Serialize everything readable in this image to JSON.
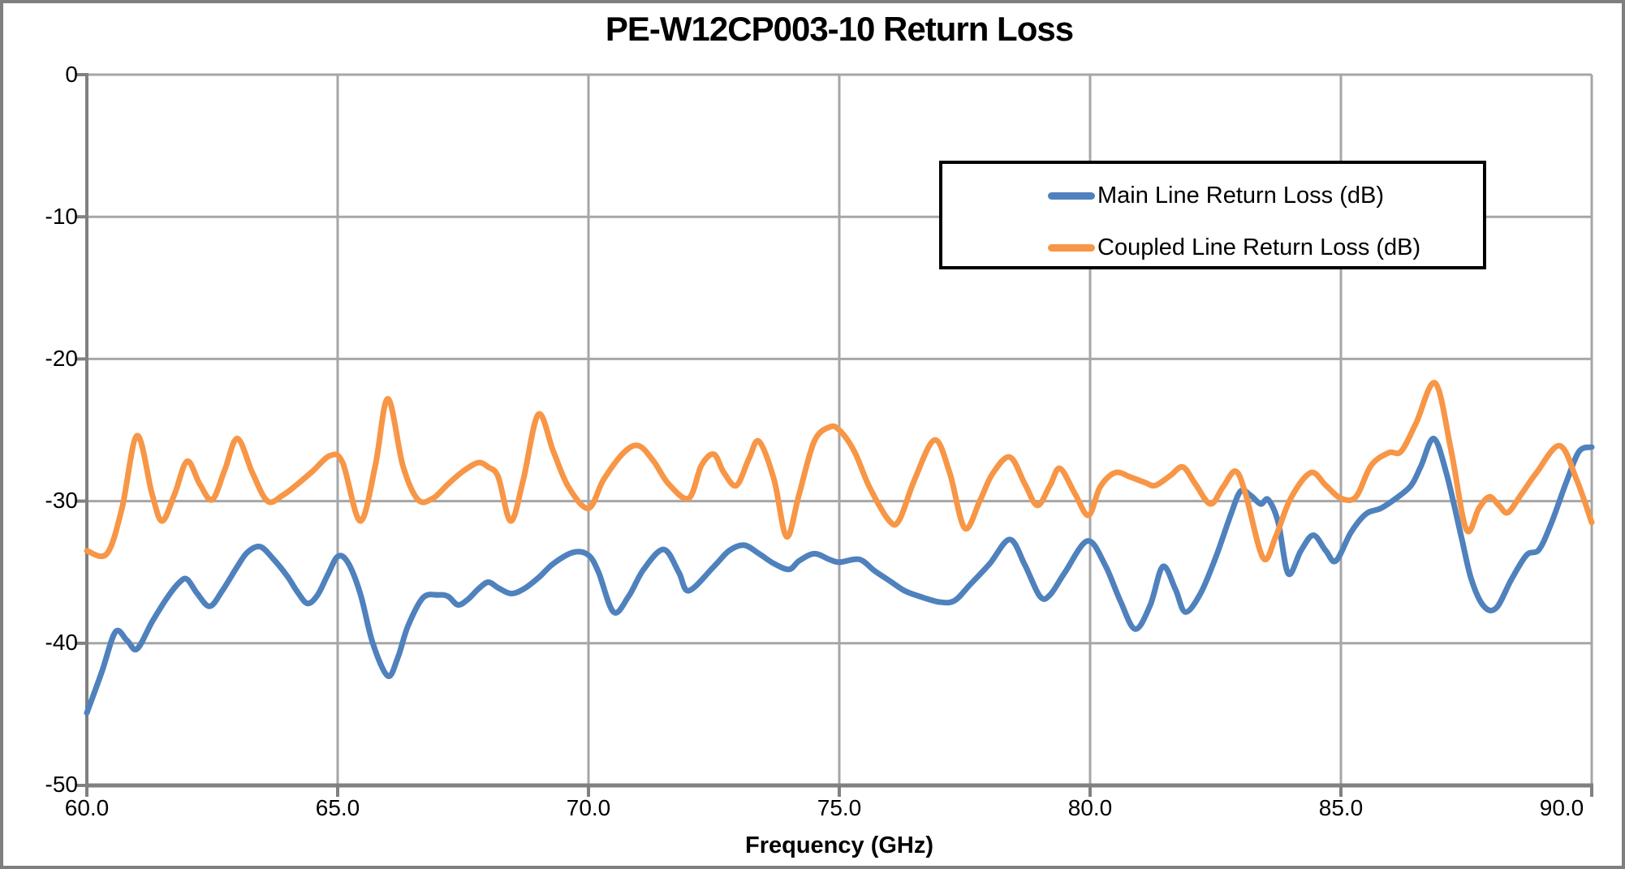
{
  "title": "PE-W12CP003-10 Return Loss",
  "xaxis_title": "Frequency (GHz)",
  "colors": {
    "main_line": "#4F81BD",
    "coupled_line": "#F79646",
    "gridline": "#A6A6A6",
    "axis": "#808080",
    "legend_border": "#000000",
    "page_border": "#7F7F7F"
  },
  "yticks": [
    "0",
    "-10",
    "-20",
    "-30",
    "-40",
    "-50"
  ],
  "xticks": [
    "60.0",
    "65.0",
    "70.0",
    "75.0",
    "80.0",
    "85.0",
    "90.0"
  ],
  "legend": [
    {
      "label": "Main Line Return Loss (dB)"
    },
    {
      "label": "Coupled Line Return Loss (dB)"
    }
  ],
  "chart_data": {
    "type": "line",
    "title": "PE-W12CP003-10 Return Loss",
    "xlabel": "Frequency (GHz)",
    "ylabel": "",
    "xlim": [
      60,
      90
    ],
    "ylim": [
      -50,
      0
    ],
    "x_tick_step": 5,
    "y_tick_step": 10,
    "grid": true,
    "legend_position": "inside-top-right",
    "series": [
      {
        "name": "Main Line Return Loss (dB)",
        "color": "#4F81BD",
        "points": [
          [
            60.0,
            -44.9
          ],
          [
            60.3,
            -42.0
          ],
          [
            60.57,
            -39.2
          ],
          [
            60.8,
            -39.8
          ],
          [
            61.0,
            -40.4
          ],
          [
            61.3,
            -38.5
          ],
          [
            61.6,
            -36.8
          ],
          [
            61.85,
            -35.7
          ],
          [
            62.0,
            -35.5
          ],
          [
            62.2,
            -36.5
          ],
          [
            62.45,
            -37.4
          ],
          [
            62.7,
            -36.3
          ],
          [
            63.0,
            -34.6
          ],
          [
            63.2,
            -33.6
          ],
          [
            63.45,
            -33.2
          ],
          [
            63.7,
            -34.0
          ],
          [
            64.0,
            -35.3
          ],
          [
            64.2,
            -36.4
          ],
          [
            64.4,
            -37.2
          ],
          [
            64.6,
            -36.6
          ],
          [
            64.8,
            -35.2
          ],
          [
            65.0,
            -33.9
          ],
          [
            65.2,
            -34.3
          ],
          [
            65.45,
            -36.5
          ],
          [
            65.7,
            -40.0
          ],
          [
            66.0,
            -42.3
          ],
          [
            66.2,
            -41.0
          ],
          [
            66.4,
            -38.8
          ],
          [
            66.7,
            -36.8
          ],
          [
            67.0,
            -36.6
          ],
          [
            67.2,
            -36.7
          ],
          [
            67.4,
            -37.3
          ],
          [
            67.6,
            -36.9
          ],
          [
            67.8,
            -36.2
          ],
          [
            68.0,
            -35.7
          ],
          [
            68.2,
            -36.1
          ],
          [
            68.45,
            -36.5
          ],
          [
            68.7,
            -36.2
          ],
          [
            69.0,
            -35.4
          ],
          [
            69.3,
            -34.4
          ],
          [
            69.7,
            -33.6
          ],
          [
            70.0,
            -33.8
          ],
          [
            70.2,
            -35.0
          ],
          [
            70.5,
            -37.8
          ],
          [
            70.8,
            -36.7
          ],
          [
            71.1,
            -34.8
          ],
          [
            71.5,
            -33.4
          ],
          [
            71.8,
            -35.0
          ],
          [
            72.0,
            -36.3
          ],
          [
            72.5,
            -34.6
          ],
          [
            72.8,
            -33.5
          ],
          [
            73.1,
            -33.1
          ],
          [
            73.4,
            -33.7
          ],
          [
            73.7,
            -34.4
          ],
          [
            74.0,
            -34.8
          ],
          [
            74.2,
            -34.2
          ],
          [
            74.5,
            -33.7
          ],
          [
            74.8,
            -34.1
          ],
          [
            75.0,
            -34.3
          ],
          [
            75.4,
            -34.1
          ],
          [
            75.7,
            -34.9
          ],
          [
            76.0,
            -35.6
          ],
          [
            76.3,
            -36.3
          ],
          [
            76.6,
            -36.7
          ],
          [
            77.0,
            -37.1
          ],
          [
            77.3,
            -37.0
          ],
          [
            77.6,
            -35.9
          ],
          [
            78.0,
            -34.4
          ],
          [
            78.4,
            -32.7
          ],
          [
            78.7,
            -34.5
          ],
          [
            79.0,
            -36.7
          ],
          [
            79.2,
            -36.6
          ],
          [
            79.5,
            -35.0
          ],
          [
            79.95,
            -32.8
          ],
          [
            80.3,
            -34.5
          ],
          [
            80.6,
            -37.0
          ],
          [
            80.9,
            -39.0
          ],
          [
            81.2,
            -37.3
          ],
          [
            81.45,
            -34.6
          ],
          [
            81.7,
            -36.2
          ],
          [
            81.9,
            -37.8
          ],
          [
            82.2,
            -36.5
          ],
          [
            82.5,
            -34.0
          ],
          [
            82.8,
            -31.0
          ],
          [
            83.0,
            -29.3
          ],
          [
            83.2,
            -29.6
          ],
          [
            83.4,
            -30.2
          ],
          [
            83.55,
            -29.9
          ],
          [
            83.75,
            -31.5
          ],
          [
            83.95,
            -35.1
          ],
          [
            84.2,
            -33.5
          ],
          [
            84.45,
            -32.4
          ],
          [
            84.7,
            -33.5
          ],
          [
            84.9,
            -34.2
          ],
          [
            85.2,
            -32.2
          ],
          [
            85.5,
            -30.9
          ],
          [
            85.8,
            -30.5
          ],
          [
            86.1,
            -29.8
          ],
          [
            86.4,
            -28.9
          ],
          [
            86.6,
            -27.5
          ],
          [
            86.85,
            -25.6
          ],
          [
            87.1,
            -28.0
          ],
          [
            87.4,
            -32.5
          ],
          [
            87.6,
            -35.5
          ],
          [
            87.85,
            -37.4
          ],
          [
            88.1,
            -37.5
          ],
          [
            88.4,
            -35.5
          ],
          [
            88.7,
            -33.8
          ],
          [
            88.95,
            -33.4
          ],
          [
            89.2,
            -31.5
          ],
          [
            89.5,
            -28.6
          ],
          [
            89.75,
            -26.5
          ],
          [
            90.0,
            -26.2
          ]
        ]
      },
      {
        "name": "Coupled Line Return Loss (dB)",
        "color": "#F79646",
        "points": [
          [
            60.0,
            -33.5
          ],
          [
            60.4,
            -33.7
          ],
          [
            60.7,
            -30.5
          ],
          [
            61.0,
            -25.4
          ],
          [
            61.3,
            -29.5
          ],
          [
            61.5,
            -31.4
          ],
          [
            61.75,
            -29.5
          ],
          [
            62.0,
            -27.2
          ],
          [
            62.25,
            -28.8
          ],
          [
            62.5,
            -29.9
          ],
          [
            62.75,
            -27.8
          ],
          [
            63.0,
            -25.6
          ],
          [
            63.3,
            -28.0
          ],
          [
            63.6,
            -30.0
          ],
          [
            63.9,
            -29.6
          ],
          [
            64.2,
            -28.8
          ],
          [
            64.5,
            -27.9
          ],
          [
            64.85,
            -26.8
          ],
          [
            65.1,
            -27.3
          ],
          [
            65.45,
            -31.4
          ],
          [
            65.75,
            -27.5
          ],
          [
            66.0,
            -22.8
          ],
          [
            66.3,
            -27.5
          ],
          [
            66.6,
            -29.9
          ],
          [
            66.9,
            -29.8
          ],
          [
            67.2,
            -28.8
          ],
          [
            67.5,
            -27.9
          ],
          [
            67.8,
            -27.3
          ],
          [
            68.0,
            -27.6
          ],
          [
            68.2,
            -28.3
          ],
          [
            68.45,
            -31.4
          ],
          [
            68.7,
            -28.5
          ],
          [
            69.0,
            -23.9
          ],
          [
            69.3,
            -26.5
          ],
          [
            69.6,
            -29.0
          ],
          [
            70.0,
            -30.5
          ],
          [
            70.3,
            -28.5
          ],
          [
            70.7,
            -26.6
          ],
          [
            71.0,
            -26.1
          ],
          [
            71.3,
            -27.2
          ],
          [
            71.6,
            -28.8
          ],
          [
            72.0,
            -29.8
          ],
          [
            72.25,
            -27.5
          ],
          [
            72.5,
            -26.7
          ],
          [
            72.7,
            -28.0
          ],
          [
            72.95,
            -28.9
          ],
          [
            73.2,
            -27.0
          ],
          [
            73.4,
            -25.8
          ],
          [
            73.7,
            -28.5
          ],
          [
            73.95,
            -32.5
          ],
          [
            74.2,
            -29.5
          ],
          [
            74.5,
            -25.8
          ],
          [
            74.8,
            -24.8
          ],
          [
            75.0,
            -25.0
          ],
          [
            75.3,
            -26.5
          ],
          [
            75.6,
            -29.0
          ],
          [
            76.0,
            -31.4
          ],
          [
            76.2,
            -31.3
          ],
          [
            76.5,
            -28.5
          ],
          [
            76.9,
            -25.7
          ],
          [
            77.2,
            -28.0
          ],
          [
            77.5,
            -31.9
          ],
          [
            77.8,
            -30.0
          ],
          [
            78.05,
            -28.1
          ],
          [
            78.4,
            -26.9
          ],
          [
            78.7,
            -28.8
          ],
          [
            78.95,
            -30.3
          ],
          [
            79.2,
            -28.9
          ],
          [
            79.4,
            -27.7
          ],
          [
            79.7,
            -29.5
          ],
          [
            79.97,
            -31.0
          ],
          [
            80.2,
            -29.0
          ],
          [
            80.5,
            -28.0
          ],
          [
            80.8,
            -28.3
          ],
          [
            81.1,
            -28.7
          ],
          [
            81.3,
            -28.9
          ],
          [
            81.6,
            -28.2
          ],
          [
            81.85,
            -27.6
          ],
          [
            82.1,
            -28.8
          ],
          [
            82.4,
            -30.2
          ],
          [
            82.65,
            -29.0
          ],
          [
            82.9,
            -27.9
          ],
          [
            83.1,
            -29.5
          ],
          [
            83.45,
            -34.0
          ],
          [
            83.7,
            -32.5
          ],
          [
            84.0,
            -29.8
          ],
          [
            84.4,
            -28.0
          ],
          [
            84.7,
            -28.9
          ],
          [
            85.0,
            -29.8
          ],
          [
            85.3,
            -29.7
          ],
          [
            85.6,
            -27.5
          ],
          [
            85.95,
            -26.6
          ],
          [
            86.2,
            -26.5
          ],
          [
            86.5,
            -24.5
          ],
          [
            86.88,
            -21.7
          ],
          [
            87.2,
            -26.5
          ],
          [
            87.5,
            -32.0
          ],
          [
            87.75,
            -30.5
          ],
          [
            87.96,
            -29.7
          ],
          [
            88.15,
            -30.3
          ],
          [
            88.33,
            -30.8
          ],
          [
            88.6,
            -29.5
          ],
          [
            88.9,
            -28.0
          ],
          [
            89.36,
            -26.1
          ],
          [
            89.7,
            -28.5
          ],
          [
            90.0,
            -31.5
          ]
        ]
      }
    ]
  }
}
